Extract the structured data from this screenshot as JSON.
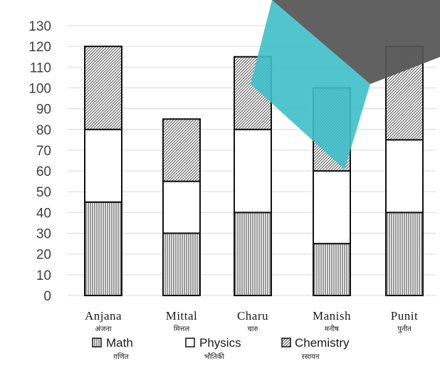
{
  "chart_data": {
    "type": "bar",
    "stacked": true,
    "categories": [
      "Anjana",
      "Mittal",
      "Charu",
      "Manish",
      "Punit"
    ],
    "categories_hindi": [
      "अंजना",
      "मित्तल",
      "चारु",
      "मनीष",
      "पुनीत"
    ],
    "series": [
      {
        "name": "Math",
        "name_hindi": "गणित",
        "pattern": "vertical-lines",
        "values": [
          45,
          30,
          40,
          25,
          40
        ]
      },
      {
        "name": "Physics",
        "name_hindi": "भौतिकी",
        "pattern": "blank",
        "values": [
          35,
          25,
          40,
          35,
          35
        ]
      },
      {
        "name": "Chemistry",
        "name_hindi": "रसायन",
        "pattern": "diagonal-hatch",
        "values": [
          40,
          30,
          35,
          40,
          45
        ]
      }
    ],
    "ylim": [
      0,
      130
    ],
    "ytick_step": 10,
    "yticks": [
      "0",
      "10",
      "20",
      "30",
      "40",
      "50",
      "60",
      "70",
      "80",
      "90",
      "100",
      "110",
      "120",
      "130"
    ],
    "grid": true,
    "legend_position": "bottom",
    "title": "",
    "xlabel": "",
    "ylabel": ""
  },
  "overlay": {
    "cyan_color": "#3dbfc9",
    "dark_color": "#555555"
  }
}
